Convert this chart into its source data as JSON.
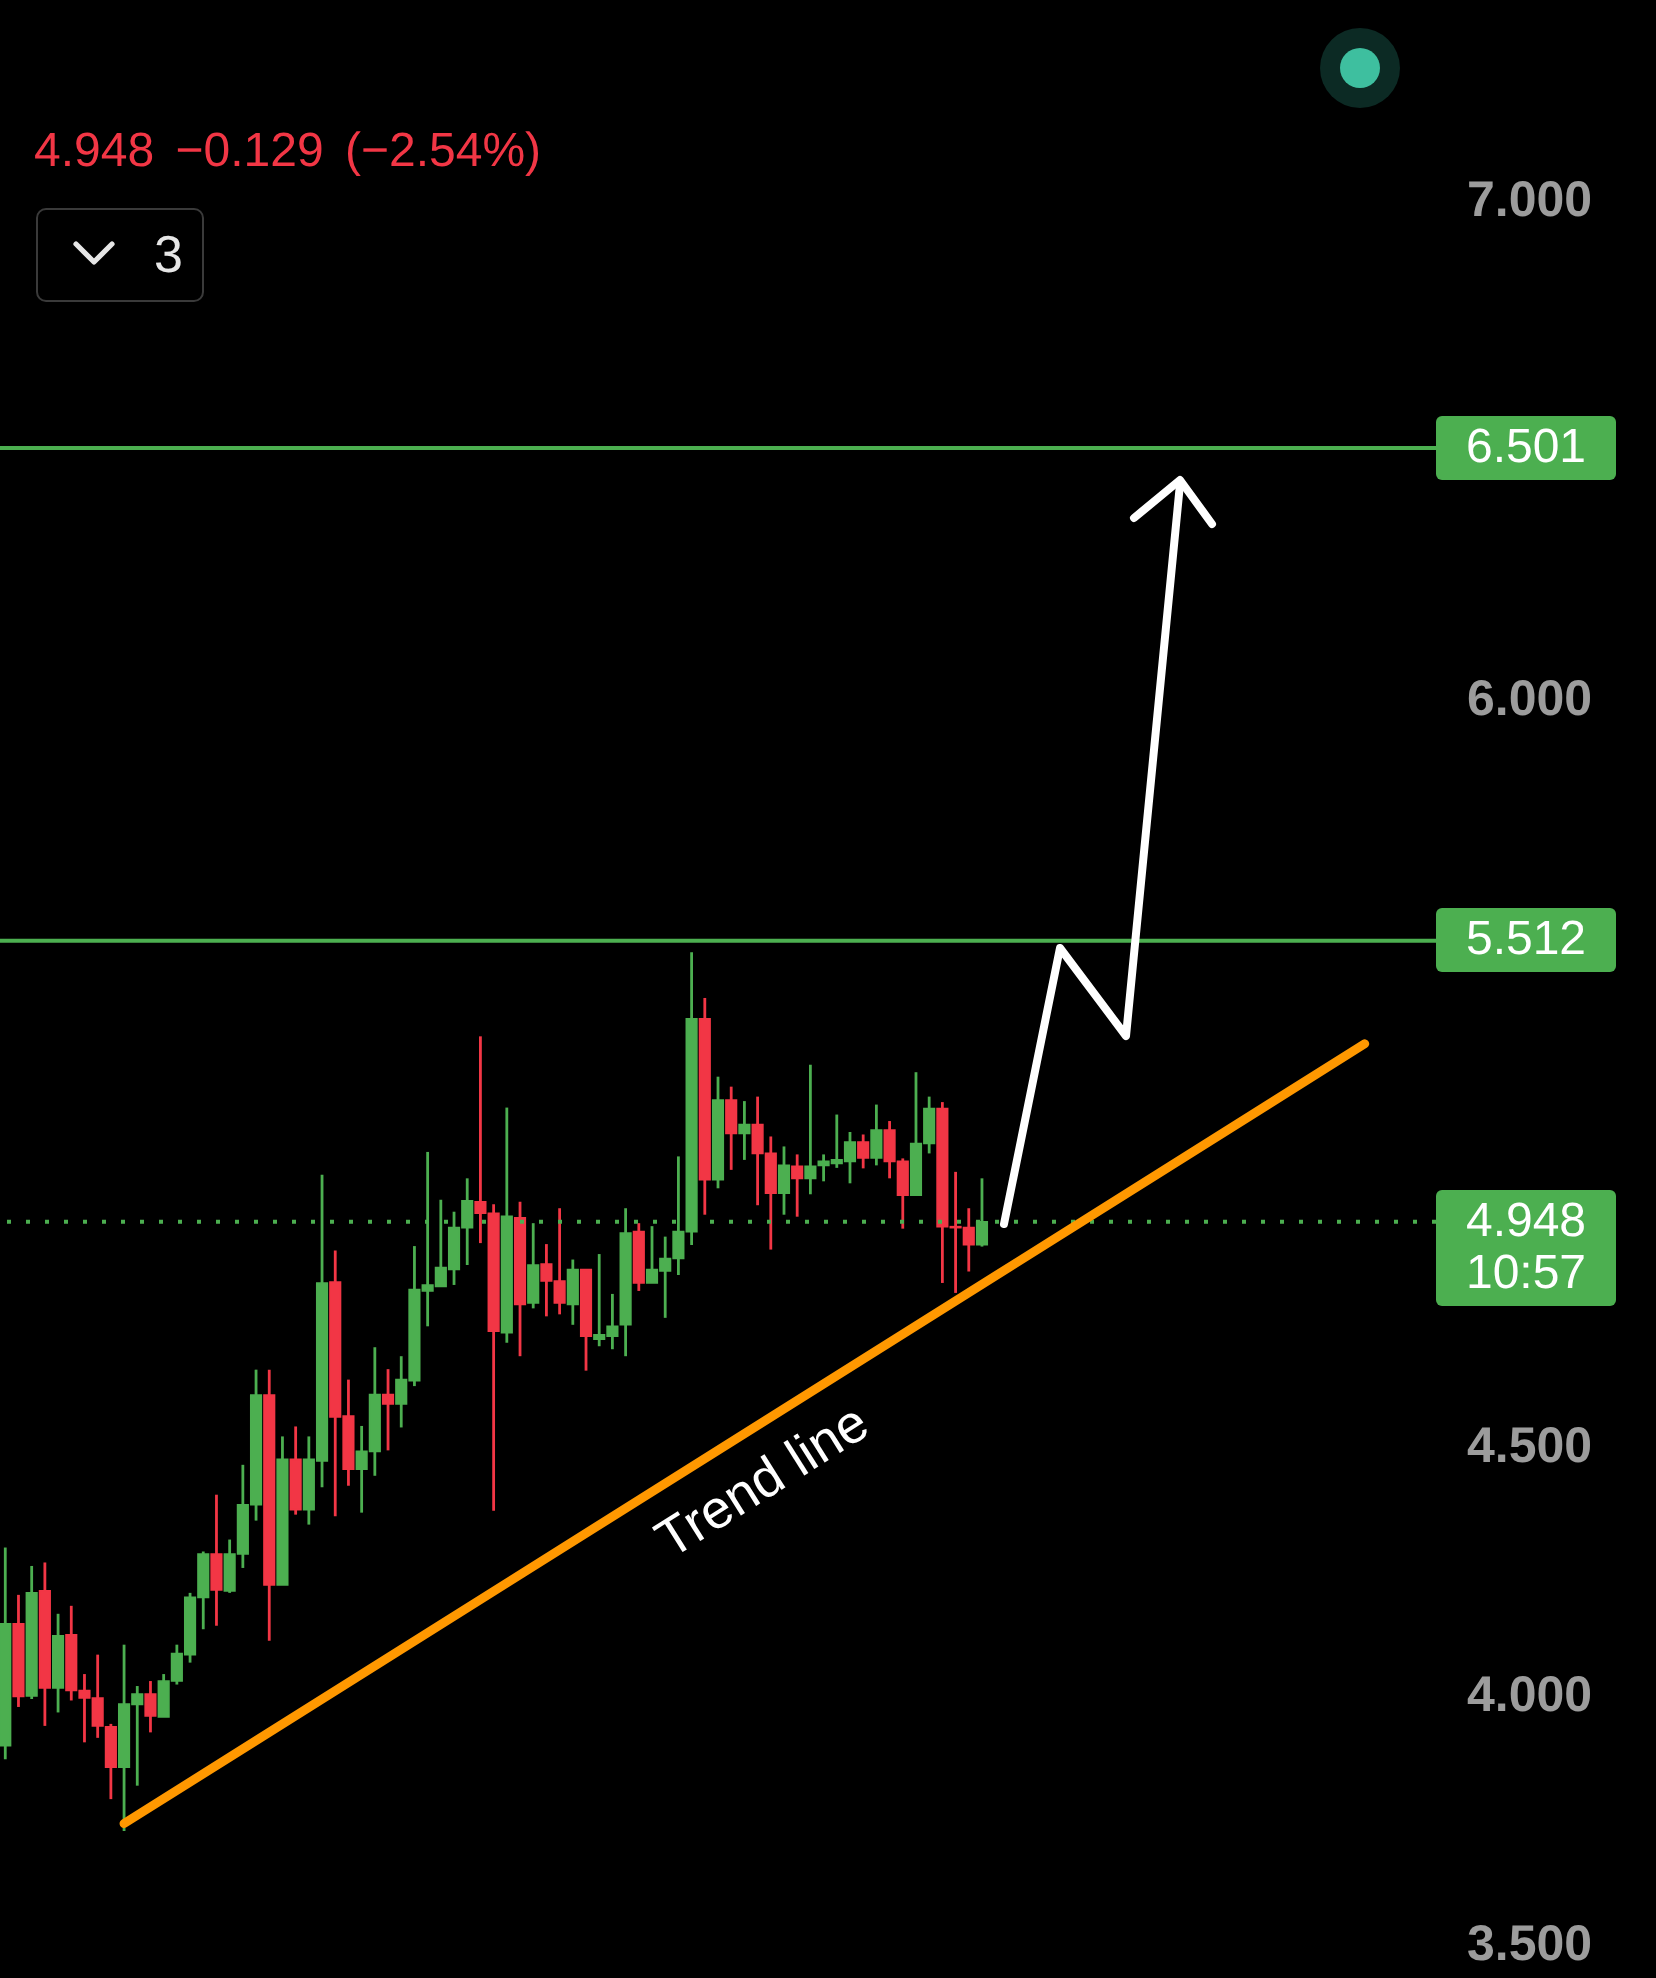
{
  "chart_data": {
    "type": "candlestick",
    "subtitle": "4.948 −0.129 (−2.54%)",
    "categories": [
      null,
      null,
      null,
      null,
      null,
      null,
      null,
      null,
      null,
      null,
      null,
      null,
      null,
      null,
      null,
      null,
      null,
      null,
      null,
      null,
      null,
      null,
      null,
      null,
      null,
      null,
      null,
      null,
      null,
      null,
      null,
      null,
      null,
      null,
      null,
      null,
      null,
      null,
      null,
      null,
      null,
      null,
      null,
      null,
      null,
      null,
      null,
      null,
      null,
      null,
      null,
      null,
      null,
      null,
      null,
      null,
      null,
      null,
      null,
      null,
      null,
      null,
      null,
      null,
      null,
      null,
      null,
      null,
      null,
      null,
      null,
      null,
      null,
      null,
      null,
      null,
      null,
      null,
      null,
      null,
      null,
      null,
      null,
      null,
      null,
      null,
      null,
      null,
      null,
      null,
      null,
      null,
      null,
      null,
      null,
      null,
      null,
      null,
      null,
      null,
      null,
      null,
      null,
      null,
      null,
      null,
      null,
      null,
      null
    ],
    "ohlc": [
      [
        3.896,
        4.294,
        3.869,
        4.141
      ],
      [
        4.141,
        4.199,
        3.974,
        3.995
      ],
      [
        3.996,
        4.257,
        3.99,
        4.203
      ],
      [
        4.207,
        4.264,
        3.936,
        4.012
      ],
      [
        4.012,
        4.161,
        3.963,
        4.117
      ],
      [
        4.119,
        4.177,
        3.987,
        4.007
      ],
      [
        4.007,
        4.04,
        3.903,
        3.992
      ],
      [
        3.992,
        4.079,
        3.912,
        3.936
      ],
      [
        3.934,
        3.94,
        3.789,
        3.853
      ],
      [
        3.853,
        4.099,
        3.725,
        3.98
      ],
      [
        3.979,
        4.016,
        3.816,
        4.0
      ],
      [
        4.0,
        4.026,
        3.923,
        3.956
      ],
      [
        3.954,
        4.04,
        3.954,
        4.026
      ],
      [
        4.026,
        4.099,
        4.019,
        4.081
      ],
      [
        4.079,
        4.203,
        4.063,
        4.194
      ],
      [
        4.194,
        4.286,
        4.13,
        4.281
      ],
      [
        4.281,
        4.4,
        4.137,
        4.209
      ],
      [
        4.207,
        4.31,
        4.203,
        4.281
      ],
      [
        4.281,
        4.46,
        4.253,
        4.38
      ],
      [
        4.38,
        4.651,
        4.348,
        4.6
      ],
      [
        4.6,
        4.651,
        4.107,
        4.219
      ],
      [
        4.219,
        4.517,
        4.219,
        4.471
      ],
      [
        4.471,
        4.537,
        4.36,
        4.37
      ],
      [
        4.37,
        4.517,
        4.34,
        4.471
      ],
      [
        4.468,
        5.042,
        4.415,
        4.825
      ],
      [
        4.827,
        4.89,
        4.357,
        4.556
      ],
      [
        4.558,
        4.631,
        4.418,
        4.451
      ],
      [
        4.451,
        4.538,
        4.364,
        4.487
      ],
      [
        4.487,
        4.696,
        4.438,
        4.601
      ],
      [
        4.601,
        4.652,
        4.489,
        4.582
      ],
      [
        4.582,
        4.678,
        4.535,
        4.631
      ],
      [
        4.629,
        4.899,
        4.618,
        4.812
      ],
      [
        4.809,
        5.088,
        4.738,
        4.821
      ],
      [
        4.818,
        4.992,
        4.818,
        4.856
      ],
      [
        4.852,
        4.968,
        4.821,
        4.936
      ],
      [
        4.936,
        5.035,
        4.861,
        4.99
      ],
      [
        4.988,
        5.32,
        4.905,
        4.965
      ],
      [
        4.965,
        4.983,
        4.368,
        4.728
      ],
      [
        4.725,
        5.177,
        4.705,
        4.959
      ],
      [
        4.956,
        4.988,
        4.678,
        4.782
      ],
      [
        4.785,
        4.945,
        4.774,
        4.861
      ],
      [
        4.863,
        4.903,
        4.758,
        4.829
      ],
      [
        4.829,
        4.975,
        4.762,
        4.785
      ],
      [
        4.782,
        4.872,
        4.741,
        4.852
      ],
      [
        4.852,
        4.852,
        4.649,
        4.718
      ],
      [
        4.712,
        4.883,
        4.698,
        4.721
      ],
      [
        4.718,
        4.803,
        4.692,
        4.738
      ],
      [
        4.741,
        4.975,
        4.678,
        4.925
      ],
      [
        4.928,
        4.945,
        4.809,
        4.825
      ],
      [
        4.825,
        4.939,
        4.825,
        4.852
      ],
      [
        4.849,
        4.918,
        4.755,
        4.874
      ],
      [
        4.874,
        5.079,
        4.841,
        4.928
      ],
      [
        4.928,
        5.489,
        4.901,
        5.355
      ],
      [
        5.355,
        5.397,
        4.962,
        5.032
      ],
      [
        5.032,
        5.239,
        5.015,
        5.192
      ],
      [
        5.192,
        5.219,
        5.052,
        5.125
      ],
      [
        5.125,
        5.19,
        5.072,
        5.143
      ],
      [
        5.143,
        5.199,
        4.981,
        5.085
      ],
      [
        5.085,
        5.119,
        4.892,
        5.005
      ],
      [
        5.005,
        5.099,
        4.962,
        5.061
      ],
      [
        5.059,
        5.083,
        4.958,
        5.035
      ],
      [
        5.035,
        5.263,
        5.003,
        5.059
      ],
      [
        5.061,
        5.083,
        5.029,
        5.069
      ],
      [
        5.065,
        5.163,
        5.056,
        5.072
      ],
      [
        5.069,
        5.128,
        5.025,
        5.108
      ],
      [
        5.108,
        5.123,
        5.055,
        5.076
      ],
      [
        5.076,
        5.183,
        5.061,
        5.132
      ],
      [
        5.132,
        5.15,
        5.035,
        5.069
      ],
      [
        5.069,
        5.075,
        4.934,
        5.001
      ],
      [
        5.001,
        5.248,
        5.001,
        5.105
      ],
      [
        5.105,
        5.199,
        5.085,
        5.175
      ],
      [
        5.175,
        5.188,
        4.825,
        4.938
      ],
      [
        4.938,
        5.048,
        4.805,
        4.936
      ],
      [
        4.936,
        4.975,
        4.848,
        4.902
      ],
      [
        4.902,
        5.035,
        4.898,
        4.948
      ],
      null,
      null,
      null,
      null,
      null,
      null,
      null,
      null,
      null,
      null,
      null,
      null,
      null,
      null,
      null,
      null,
      null,
      null,
      null,
      null,
      null,
      null,
      null,
      null,
      null,
      null,
      null,
      null,
      null,
      null,
      null,
      null,
      null,
      null
    ],
    "colors": [
      "#4caf50",
      "#f23645",
      "#4caf50",
      "#f23645",
      "#4caf50",
      "#f23645",
      "#f23645",
      "#f23645",
      "#f23645",
      "#4caf50",
      "#4caf50",
      "#f23645",
      "#4caf50",
      "#4caf50",
      "#4caf50",
      "#4caf50",
      "#f23645",
      "#4caf50",
      "#4caf50",
      "#4caf50",
      "#f23645",
      "#4caf50",
      "#f23645",
      "#4caf50",
      "#4caf50",
      "#f23645",
      "#f23645",
      "#4caf50",
      "#4caf50",
      "#f23645",
      "#4caf50",
      "#4caf50",
      "#4caf50",
      "#4caf50",
      "#4caf50",
      "#4caf50",
      "#f23645",
      "#f23645",
      "#4caf50",
      "#f23645",
      "#4caf50",
      "#f23645",
      "#f23645",
      "#4caf50",
      "#f23645",
      "#4caf50",
      "#4caf50",
      "#4caf50",
      "#f23645",
      "#4caf50",
      "#4caf50",
      "#4caf50",
      "#4caf50",
      "#f23645",
      "#4caf50",
      "#f23645",
      "#4caf50",
      "#f23645",
      "#f23645",
      "#4caf50",
      "#f23645",
      "#4caf50",
      "#4caf50",
      "#4caf50",
      "#4caf50",
      "#f23645",
      "#4caf50",
      "#f23645",
      "#f23645",
      "#4caf50",
      "#4caf50",
      "#f23645",
      "#f23645",
      "#f23645",
      "#4caf50",
      null,
      null,
      null,
      null,
      null,
      null,
      null,
      null,
      null,
      null,
      null,
      null,
      null,
      null,
      null,
      null,
      null,
      null,
      null,
      null,
      null,
      null,
      null,
      null,
      null,
      null,
      null,
      null,
      null,
      null,
      null,
      null,
      null,
      null
    ],
    "series": [
      {
        "type": "line",
        "color": "#ff9800",
        "values": [
          null,
          null,
          null,
          null,
          null,
          null,
          null,
          null,
          null,
          3.74,
          null,
          null,
          null,
          null,
          null,
          null,
          null,
          null,
          null,
          null,
          null,
          null,
          null,
          null,
          null,
          null,
          null,
          null,
          null,
          null,
          null,
          null,
          null,
          null,
          null,
          null,
          null,
          null,
          null,
          null,
          null,
          null,
          null,
          null,
          null,
          null,
          null,
          null,
          null,
          null,
          null,
          null,
          null,
          null,
          null,
          null,
          null,
          null,
          null,
          null,
          null,
          null,
          null,
          null,
          null,
          null,
          null,
          null,
          null,
          null,
          null,
          null,
          null,
          null,
          null,
          null,
          null,
          null,
          null,
          null,
          null,
          null,
          null,
          null,
          null,
          null,
          null,
          null,
          null,
          null,
          null,
          null,
          null,
          null,
          null,
          null,
          null,
          null,
          null,
          null,
          null,
          null,
          null,
          5.305,
          null,
          null,
          null,
          null,
          null
        ]
      }
    ],
    "ylim": [
      3.43,
      7.4
    ],
    "yticks": [
      {
        "value": 3.5,
        "label": "3.500"
      },
      {
        "value": 4,
        "label": "4.000"
      },
      {
        "value": 4.5,
        "label": "4.500"
      },
      {
        "value": 6,
        "label": "6.000"
      },
      {
        "value": 7,
        "label": "7.000"
      }
    ],
    "ref_lines": [
      {
        "axis": "y",
        "value": 6.501,
        "label": "6.501",
        "color": "#4caf50"
      },
      {
        "axis": "y",
        "value": 5.512,
        "label": "5.512",
        "color": "#4caf50"
      },
      {
        "axis": "y",
        "value": 4.948,
        "label": "4.948",
        "color": "#4caf50",
        "line_style": "dotted"
      }
    ],
    "annotations": [
      "3",
      "10:57",
      "Trend line"
    ]
  }
}
